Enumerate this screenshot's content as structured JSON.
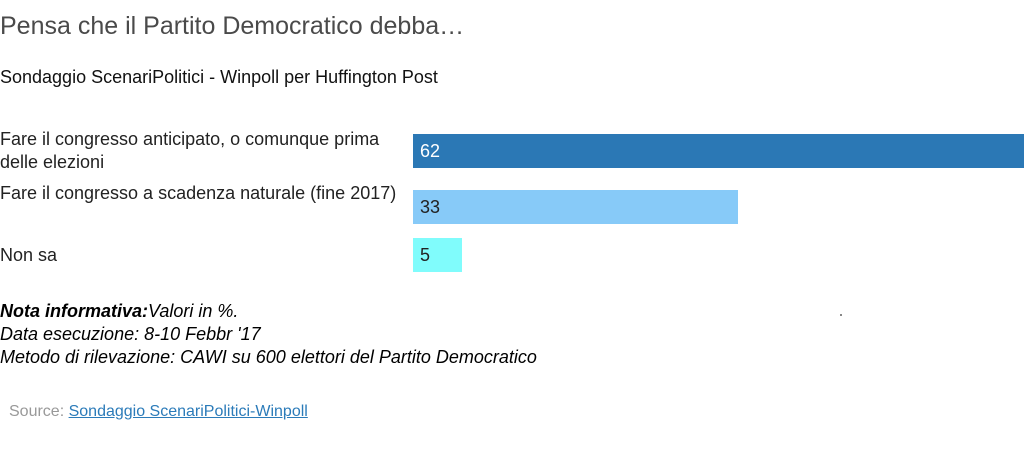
{
  "chart_data": {
    "type": "bar",
    "orientation": "horizontal",
    "title": "Pensa che il Partito Democratico debba…",
    "subtitle": "Sondaggio ScenariPolitici - Winpoll per Huffington Post",
    "categories": [
      "Fare il congresso anticipato, o comunque prima delle elezioni",
      "Fare il congresso a scadenza naturale (fine 2017)",
      "Non sa"
    ],
    "values": [
      62,
      33,
      5
    ],
    "value_labels": [
      "62",
      "33",
      "5"
    ],
    "bar_colors": [
      "#2b78b5",
      "#87caf8",
      "#80fcfc"
    ],
    "label_colors": [
      "#ffffff",
      "#222222",
      "#222222"
    ],
    "xlim": [
      0,
      62
    ],
    "grid": false,
    "legend": "none"
  },
  "notes": {
    "label": "Nota informativa:",
    "text": "Valori in %.",
    "line2": "Data esecuzione: 8-10 Febbr '17",
    "line3": "Metodo di rilevazione: CAWI su 600 elettori del Partito Democratico"
  },
  "source": {
    "prefix": "Source: ",
    "link_text": "Sondaggio ScenariPolitici-Winpoll"
  }
}
